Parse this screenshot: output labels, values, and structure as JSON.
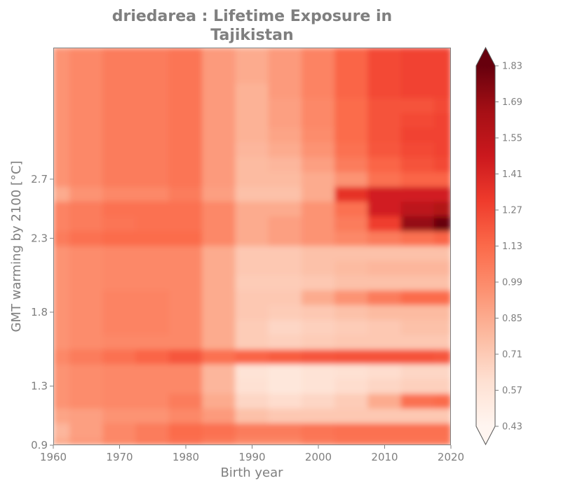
{
  "chart_data": {
    "type": "heatmap",
    "title": "driedarea : Lifetime Exposure in\nTajikistan",
    "xlabel": "Birth year",
    "ylabel": "GMT warming by 2100 [°C]",
    "x_ticks": [
      1960,
      1970,
      1980,
      1990,
      2000,
      2010,
      2020
    ],
    "y_ticks": [
      "0.9",
      "1.3",
      "1.8",
      "2.3",
      "2.7"
    ],
    "xlim": [
      1960,
      2020
    ],
    "ylim": [
      0.9,
      3.59
    ],
    "colorbar": {
      "ticks": [
        "0.43",
        "0.57",
        "0.71",
        "0.85",
        "0.99",
        "1.13",
        "1.27",
        "1.41",
        "1.55",
        "1.69",
        "1.83"
      ],
      "range": [
        0.43,
        1.83
      ],
      "extend": "both",
      "colormap": "Reds"
    },
    "cols_x": [
      1960,
      1965,
      1970,
      1975,
      1980,
      1985,
      1990,
      1995,
      2000,
      2005,
      2010,
      2015,
      2020
    ],
    "rows_y": [
      0.9,
      1.0,
      1.1,
      1.2,
      1.3,
      1.4,
      1.5,
      1.6,
      1.7,
      1.8,
      1.9,
      2.0,
      2.1,
      2.2,
      2.3,
      2.4,
      2.5,
      2.6,
      2.7,
      2.8,
      2.9,
      3.0,
      3.1,
      3.2,
      3.3,
      3.4,
      3.5
    ],
    "values": [
      [
        0.85,
        0.92,
        1.0,
        1.05,
        1.1,
        1.05,
        1.0,
        1.0,
        1.05,
        1.08,
        1.08,
        1.08,
        1.08
      ],
      [
        0.8,
        0.9,
        1.0,
        1.05,
        1.12,
        1.1,
        1.05,
        1.05,
        1.08,
        1.1,
        1.1,
        1.1,
        1.1
      ],
      [
        0.88,
        0.9,
        0.95,
        0.95,
        1.0,
        0.92,
        0.75,
        0.72,
        0.72,
        0.72,
        0.72,
        0.72,
        0.72
      ],
      [
        0.95,
        0.98,
        1.0,
        1.0,
        1.05,
        0.85,
        0.65,
        0.62,
        0.65,
        0.7,
        0.85,
        1.1,
        1.12
      ],
      [
        0.95,
        0.98,
        1.0,
        1.0,
        1.0,
        0.8,
        0.6,
        0.55,
        0.58,
        0.62,
        0.65,
        0.68,
        0.68
      ],
      [
        0.95,
        0.98,
        1.0,
        1.0,
        1.0,
        0.8,
        0.58,
        0.55,
        0.58,
        0.6,
        0.62,
        0.65,
        0.65
      ],
      [
        1.0,
        1.05,
        1.1,
        1.15,
        1.2,
        1.1,
        1.15,
        1.18,
        1.2,
        1.22,
        1.22,
        1.22,
        1.2
      ],
      [
        0.95,
        0.98,
        1.0,
        1.0,
        1.0,
        0.85,
        0.7,
        0.68,
        0.7,
        0.72,
        0.72,
        0.72,
        0.72
      ],
      [
        0.95,
        0.98,
        1.02,
        1.02,
        1.0,
        0.85,
        0.7,
        0.65,
        0.68,
        0.7,
        0.72,
        0.75,
        0.75
      ],
      [
        0.95,
        0.98,
        1.02,
        1.02,
        1.0,
        0.85,
        0.72,
        0.7,
        0.72,
        0.75,
        0.78,
        0.78,
        0.78
      ],
      [
        0.95,
        0.98,
        1.02,
        1.02,
        1.0,
        0.85,
        0.72,
        0.72,
        0.85,
        0.95,
        1.05,
        1.12,
        1.12
      ],
      [
        0.95,
        0.98,
        1.0,
        1.0,
        1.0,
        0.85,
        0.7,
        0.7,
        0.72,
        0.75,
        0.75,
        0.75,
        0.75
      ],
      [
        0.95,
        0.98,
        1.0,
        1.0,
        1.0,
        0.85,
        0.72,
        0.72,
        0.75,
        0.78,
        0.8,
        0.8,
        0.8
      ],
      [
        0.95,
        0.98,
        1.0,
        1.0,
        1.0,
        0.85,
        0.72,
        0.72,
        0.75,
        0.75,
        0.75,
        0.75,
        0.75
      ],
      [
        1.05,
        1.1,
        1.12,
        1.12,
        1.12,
        1.0,
        0.85,
        0.9,
        0.95,
        1.0,
        1.05,
        1.1,
        1.15
      ],
      [
        1.02,
        1.05,
        1.08,
        1.1,
        1.1,
        1.0,
        0.85,
        0.9,
        0.95,
        1.05,
        1.3,
        1.7,
        1.83
      ],
      [
        1.02,
        1.05,
        1.1,
        1.1,
        1.1,
        1.0,
        0.85,
        0.85,
        0.95,
        1.1,
        1.45,
        1.55,
        1.6
      ],
      [
        0.85,
        0.95,
        1.0,
        1.0,
        1.05,
        0.9,
        0.75,
        0.75,
        0.85,
        1.35,
        1.45,
        1.45,
        1.45
      ],
      [
        0.95,
        1.0,
        1.05,
        1.05,
        1.08,
        0.92,
        0.78,
        0.78,
        0.85,
        0.95,
        1.1,
        1.15,
        1.15
      ],
      [
        0.95,
        1.0,
        1.05,
        1.05,
        1.08,
        0.92,
        0.78,
        0.8,
        0.9,
        1.05,
        1.15,
        1.22,
        1.25
      ],
      [
        0.95,
        1.0,
        1.05,
        1.05,
        1.08,
        0.92,
        0.8,
        0.85,
        0.95,
        1.1,
        1.2,
        1.25,
        1.28
      ],
      [
        0.95,
        1.0,
        1.05,
        1.05,
        1.08,
        0.92,
        0.82,
        0.88,
        0.98,
        1.12,
        1.22,
        1.28,
        1.28
      ],
      [
        0.95,
        1.0,
        1.05,
        1.05,
        1.08,
        0.92,
        0.82,
        0.9,
        1.0,
        1.12,
        1.22,
        1.25,
        1.28
      ],
      [
        0.95,
        1.0,
        1.05,
        1.05,
        1.08,
        0.92,
        0.82,
        0.9,
        1.0,
        1.12,
        1.22,
        1.22,
        1.25
      ],
      [
        0.95,
        1.0,
        1.05,
        1.05,
        1.08,
        0.92,
        0.82,
        0.92,
        1.02,
        1.15,
        1.25,
        1.28,
        1.28
      ],
      [
        0.95,
        1.0,
        1.05,
        1.05,
        1.08,
        0.92,
        0.85,
        0.92,
        1.02,
        1.15,
        1.25,
        1.28,
        1.28
      ],
      [
        0.95,
        1.0,
        1.05,
        1.05,
        1.08,
        0.92,
        0.85,
        0.92,
        1.02,
        1.15,
        1.25,
        1.28,
        1.28
      ]
    ]
  }
}
